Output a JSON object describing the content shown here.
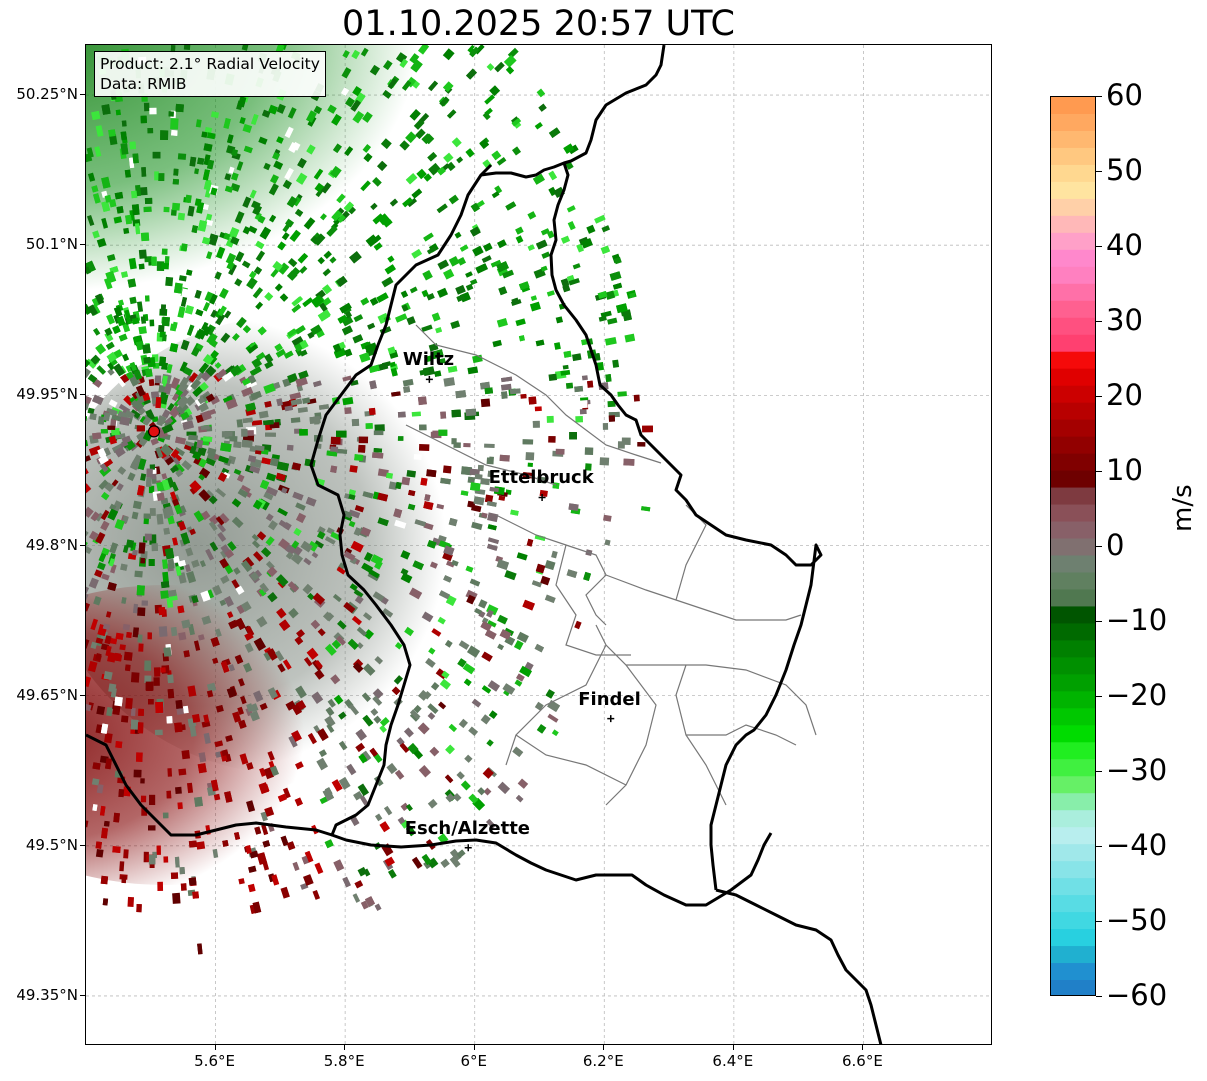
{
  "title": "01.10.2025 20:57 UTC",
  "info": {
    "product": "Product: 2.1° Radial Velocity",
    "data_source": "Data: RMIB"
  },
  "map": {
    "lon_range": [
      5.4,
      6.8
    ],
    "lat_range": [
      49.3,
      50.3
    ],
    "gridlines": true,
    "y_tick_labels": [
      "50.25°N",
      "50.1°N",
      "49.95°N",
      "49.8°N",
      "49.65°N",
      "49.5°N",
      "49.35°N"
    ],
    "x_tick_labels": [
      "5.6°E",
      "5.8°E",
      "6°E",
      "6.2°E",
      "6.4°E",
      "6.6°E"
    ],
    "radar_site": {
      "lon": 5.505,
      "lat": 49.914,
      "color": "#e01010"
    }
  },
  "cities": [
    {
      "name": "Wiltz",
      "lon": 5.93,
      "lat": 49.966
    },
    {
      "name": "Ettelbruck",
      "lon": 6.104,
      "lat": 49.848
    },
    {
      "name": "Findel",
      "lon": 6.21,
      "lat": 49.627
    },
    {
      "name": "Esch/Alzette",
      "lon": 5.99,
      "lat": 49.498
    }
  ],
  "colorbar": {
    "min": -60,
    "max": 60,
    "tick_labels": [
      "60",
      "50",
      "40",
      "30",
      "20",
      "10",
      "0",
      "−10",
      "−20",
      "−30",
      "−40",
      "−50",
      "−60"
    ],
    "unit": "m/s",
    "colors_top_to_bottom": [
      "#ff9a50",
      "#ffa860",
      "#ffb870",
      "#ffc880",
      "#ffd890",
      "#ffe4a0",
      "#ffd0a8",
      "#ffb8b8",
      "#ffa0c8",
      "#ff88cc",
      "#ff80c0",
      "#ff70a8",
      "#ff6090",
      "#ff5080",
      "#ff4070",
      "#f50a0a",
      "#e00000",
      "#cc0000",
      "#b80000",
      "#a40000",
      "#920000",
      "#800000",
      "#6e0000",
      "#7e3a40",
      "#8a5058",
      "#886068",
      "#807070",
      "#6e8070",
      "#608060",
      "#507850",
      "#005500",
      "#006a00",
      "#008000",
      "#009000",
      "#00a000",
      "#00b400",
      "#00c800",
      "#00dc00",
      "#20ee20",
      "#40f040",
      "#66f066",
      "#88eeaa",
      "#aaeedd",
      "#b8eeee",
      "#a0e8ea",
      "#88e4e8",
      "#70e0e6",
      "#58dce4",
      "#40d8e2",
      "#28d0e0",
      "#20b0d0",
      "#2090d0",
      "#2080c8"
    ]
  }
}
